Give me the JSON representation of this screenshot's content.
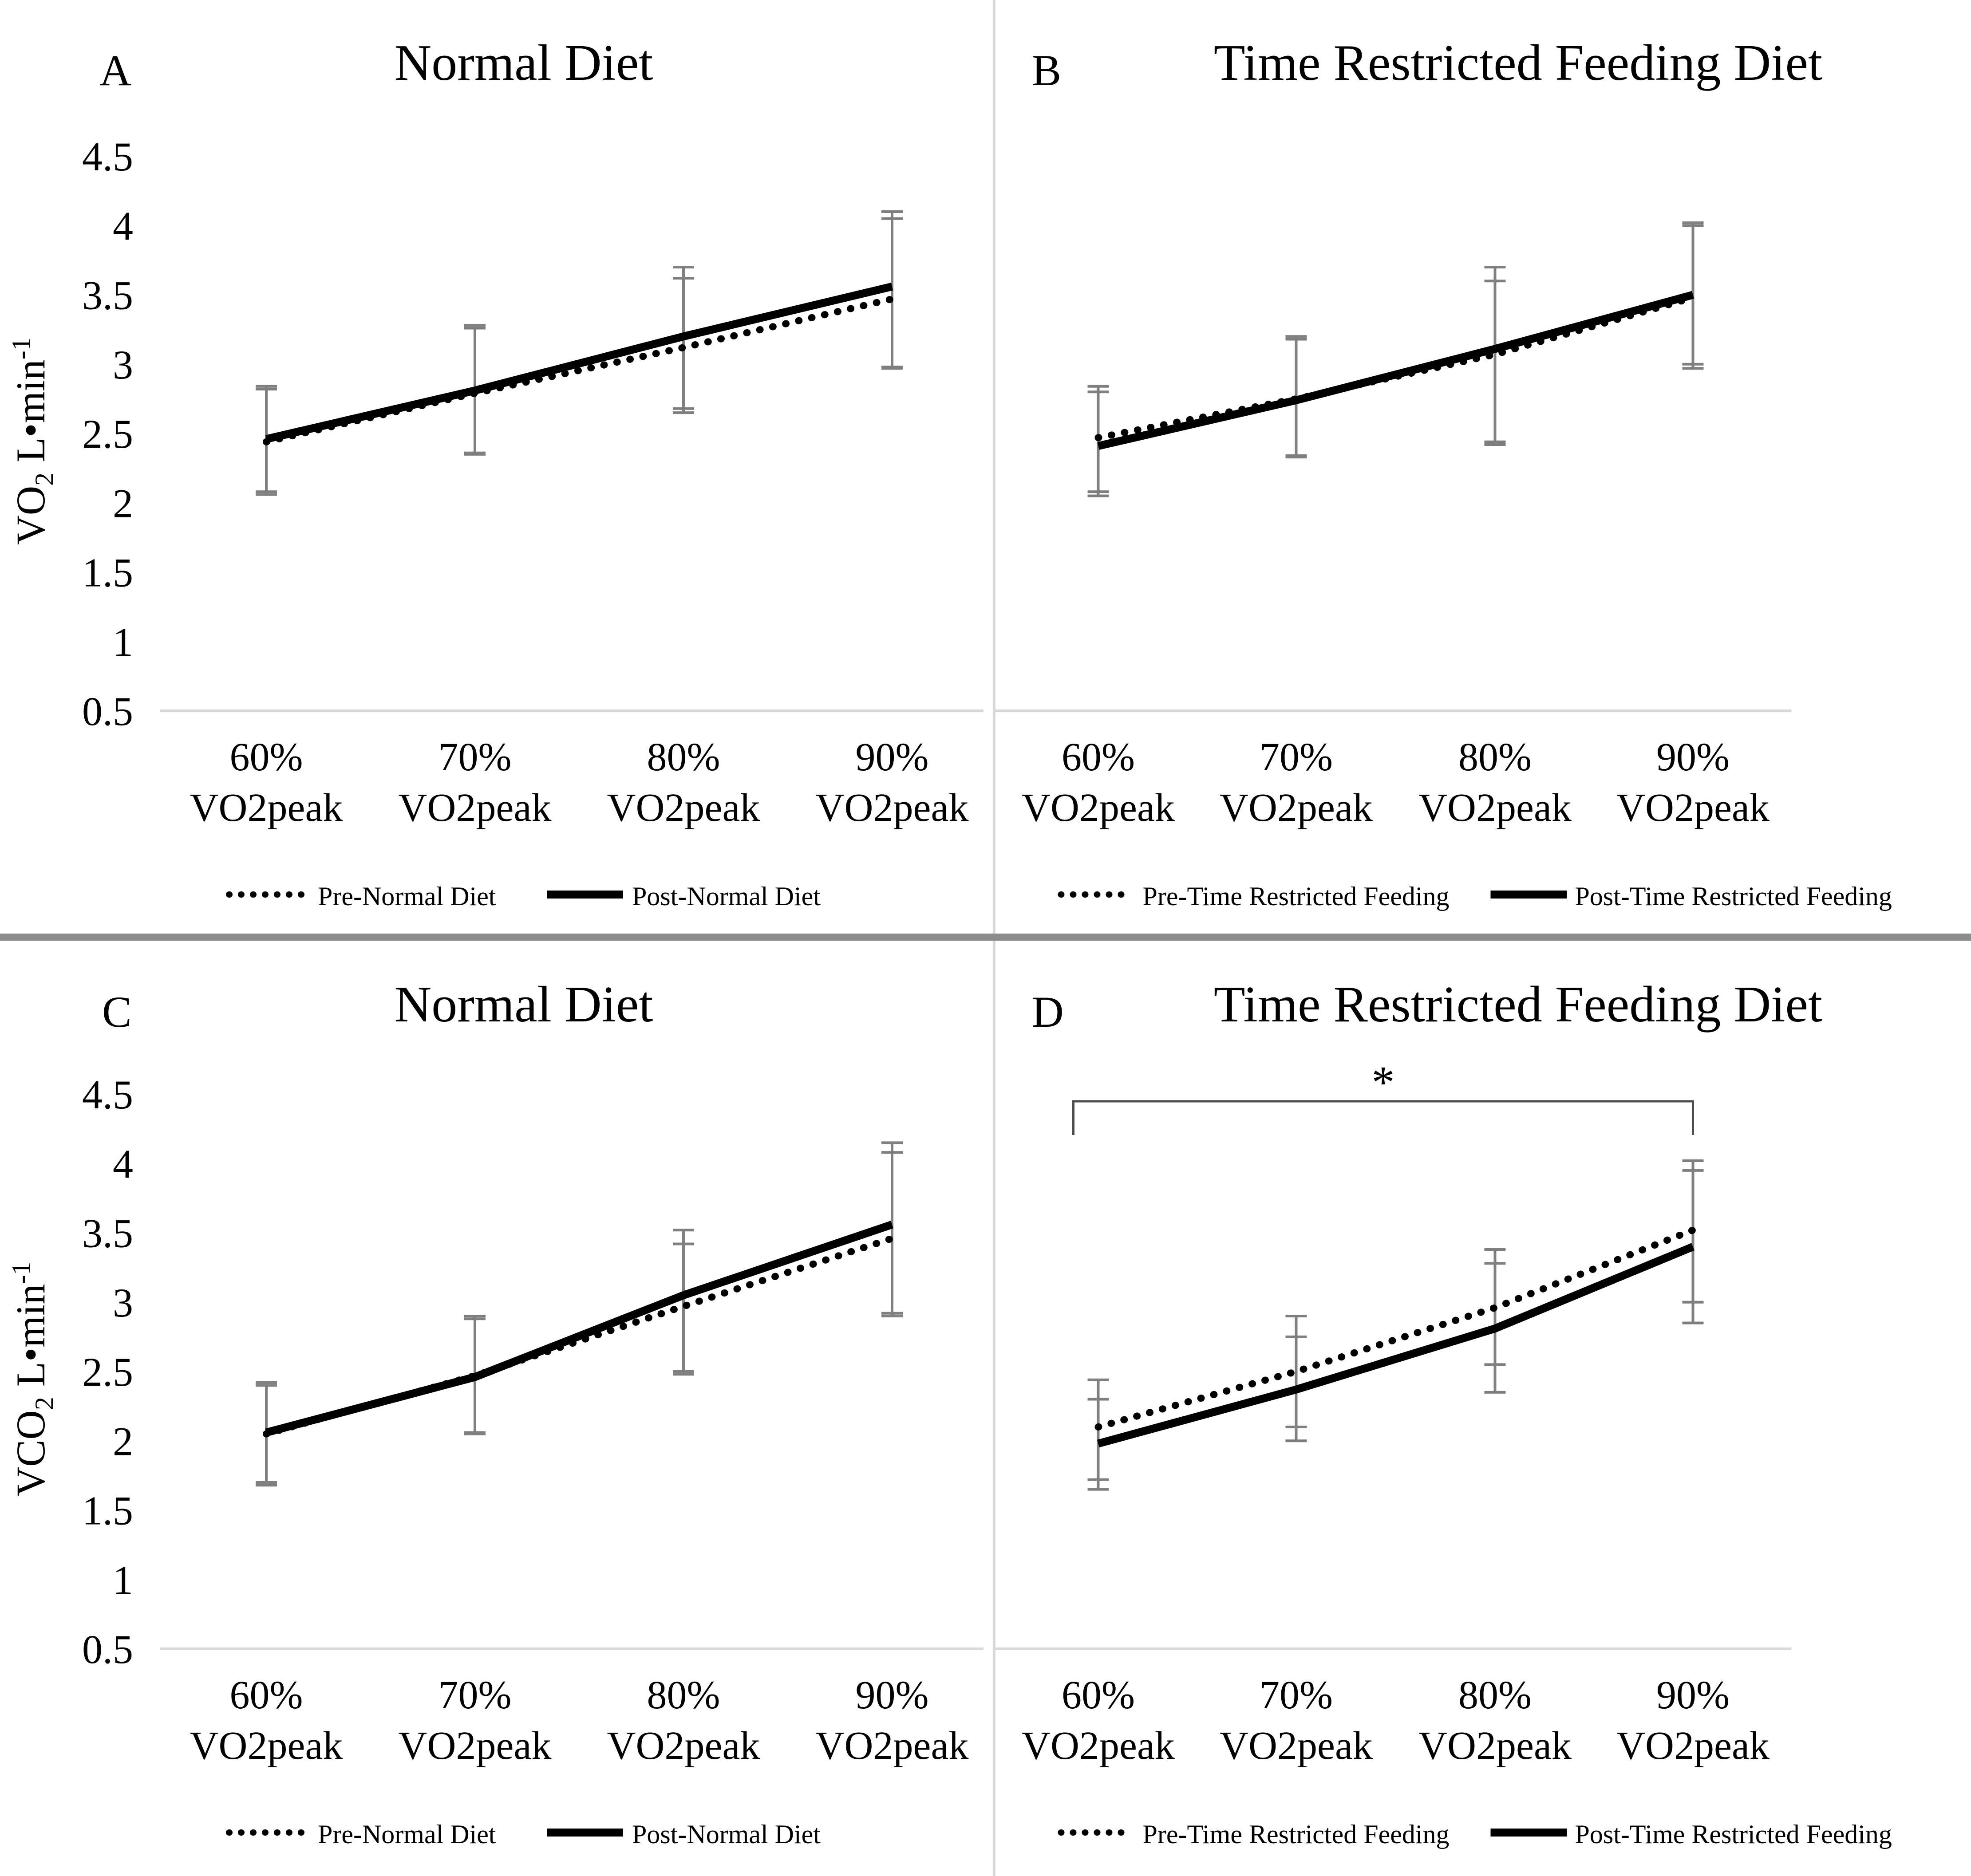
{
  "figure": {
    "background": "#ffffff",
    "divider_color_horizontal": "#8c8c8c",
    "divider_color_vertical": "#d9d9d9",
    "axis_line_color": "#d9d9d9",
    "error_bar_color": "#7f7f7f",
    "line_color": "#000000",
    "significance_color": "#4d4d4d"
  },
  "chart_data": [
    {
      "panel_label": "A",
      "title": "Normal Diet",
      "type": "line",
      "show_y_axis": true,
      "ylabel": {
        "main": "VO",
        "sub": "2",
        "mid": " L•min",
        "sup": "-1"
      },
      "ylim": [
        0.5,
        4.5
      ],
      "ytick_step": 0.5,
      "ytick_labels": [
        "0.5",
        "1",
        "1.5",
        "2",
        "2.5",
        "3",
        "3.5",
        "4",
        "4.5"
      ],
      "categories": [
        "60% VO2peak",
        "70% VO2peak",
        "80% VO2peak",
        "90% VO2peak"
      ],
      "grid": "off",
      "legend_position": "bottom",
      "series": [
        {
          "name": "Pre-Normal Diet",
          "style": "dotted",
          "values": [
            2.44,
            2.79,
            3.12,
            3.47
          ],
          "err_low": [
            2.08,
            2.36,
            2.68,
            2.98
          ],
          "err_high": [
            2.82,
            3.26,
            3.62,
            4.05
          ]
        },
        {
          "name": "Post-Normal Diet",
          "style": "solid",
          "values": [
            2.46,
            2.81,
            3.2,
            3.56
          ],
          "err_low": [
            2.06,
            2.35,
            2.65,
            2.97
          ],
          "err_high": [
            2.84,
            3.28,
            3.7,
            4.1
          ]
        }
      ],
      "significance": null
    },
    {
      "panel_label": "B",
      "title": "Time Restricted Feeding Diet",
      "type": "line",
      "show_y_axis": false,
      "ylabel": null,
      "ylim": [
        0.5,
        4.5
      ],
      "ytick_step": 0.5,
      "ytick_labels": [
        "0.5",
        "1",
        "1.5",
        "2",
        "2.5",
        "3",
        "3.5",
        "4",
        "4.5"
      ],
      "categories": [
        "60% VO2peak",
        "70% VO2peak",
        "80% VO2peak",
        "90% VO2peak"
      ],
      "grid": "off",
      "legend_position": "bottom",
      "series": [
        {
          "name": "Pre-Time Restricted Feeding",
          "style": "dotted",
          "values": [
            2.47,
            2.75,
            3.07,
            3.48
          ],
          "err_low": [
            2.08,
            2.34,
            2.44,
            3.0
          ],
          "err_high": [
            2.8,
            3.18,
            3.7,
            4.0
          ]
        },
        {
          "name": "Post-Time Restricted Feeding",
          "style": "solid",
          "values": [
            2.41,
            2.74,
            3.11,
            3.5
          ],
          "err_low": [
            2.05,
            2.33,
            2.42,
            2.97
          ],
          "err_high": [
            2.84,
            3.2,
            3.6,
            4.02
          ]
        }
      ],
      "significance": null
    },
    {
      "panel_label": "C",
      "title": "Normal Diet",
      "type": "line",
      "show_y_axis": true,
      "ylabel": {
        "main": "VCO",
        "sub": "2",
        "mid": " L•min",
        "sup": "-1"
      },
      "ylim": [
        0.5,
        4.5
      ],
      "ytick_step": 0.5,
      "ytick_labels": [
        "0.5",
        "1",
        "1.5",
        "2",
        "2.5",
        "3",
        "3.5",
        "4",
        "4.5"
      ],
      "categories": [
        "60% VO2peak",
        "70% VO2peak",
        "80% VO2peak",
        "90% VO2peak"
      ],
      "grid": "off",
      "legend_position": "bottom",
      "series": [
        {
          "name": "Pre-Normal Diet",
          "style": "dotted",
          "values": [
            2.05,
            2.47,
            2.97,
            3.46
          ],
          "err_low": [
            1.7,
            2.06,
            2.5,
            2.92
          ],
          "err_high": [
            2.4,
            2.88,
            3.42,
            4.08
          ]
        },
        {
          "name": "Post-Normal Diet",
          "style": "solid",
          "values": [
            2.06,
            2.46,
            3.05,
            3.56
          ],
          "err_low": [
            1.68,
            2.05,
            2.48,
            2.9
          ],
          "err_high": [
            2.42,
            2.9,
            3.52,
            4.15
          ]
        }
      ],
      "significance": null
    },
    {
      "panel_label": "D",
      "title": "Time Restricted Feeding Diet",
      "type": "line",
      "show_y_axis": false,
      "ylabel": null,
      "ylim": [
        0.5,
        4.5
      ],
      "ytick_step": 0.5,
      "ytick_labels": [
        "0.5",
        "1",
        "1.5",
        "2",
        "2.5",
        "3",
        "3.5",
        "4",
        "4.5"
      ],
      "categories": [
        "60% VO2peak",
        "70% VO2peak",
        "80% VO2peak",
        "90% VO2peak"
      ],
      "grid": "off",
      "legend_position": "bottom",
      "series": [
        {
          "name": "Pre-Time Restricted Feeding",
          "style": "dotted",
          "values": [
            2.1,
            2.5,
            2.96,
            3.52
          ],
          "err_low": [
            1.72,
            2.1,
            2.55,
            3.0
          ],
          "err_high": [
            2.44,
            2.9,
            3.38,
            4.02
          ]
        },
        {
          "name": "Post-Time Restricted Feeding",
          "style": "solid",
          "values": [
            1.98,
            2.37,
            2.81,
            3.4
          ],
          "err_low": [
            1.65,
            2.0,
            2.35,
            2.85
          ],
          "err_high": [
            2.3,
            2.75,
            3.28,
            3.95
          ]
        }
      ],
      "significance": {
        "label": "*",
        "from_index": 0,
        "to_index": 3
      }
    }
  ]
}
